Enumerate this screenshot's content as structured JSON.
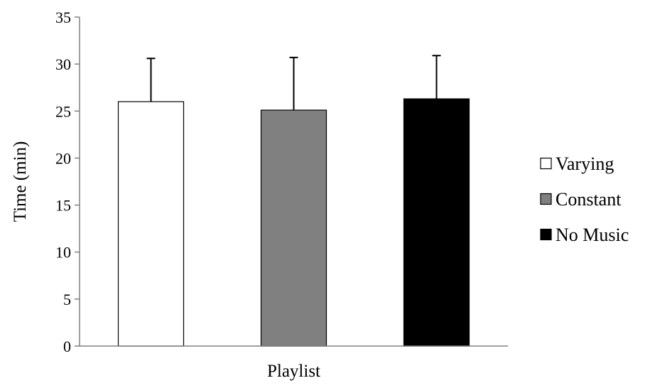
{
  "chart_data": {
    "type": "bar",
    "title": "",
    "xlabel": "Playlist",
    "ylabel": "Time (min)",
    "ylim": [
      0,
      35
    ],
    "yticks": [
      0,
      5,
      10,
      15,
      20,
      25,
      30,
      35
    ],
    "grid": false,
    "legend_position": "right",
    "error_bars": "upper",
    "series": [
      {
        "name": "Varying",
        "value": 26.0,
        "error": 4.6,
        "color": "#ffffff"
      },
      {
        "name": "Constant",
        "value": 25.1,
        "error": 5.6,
        "color": "#808080"
      },
      {
        "name": "No Music",
        "value": 26.3,
        "error": 4.6,
        "color": "#000000"
      }
    ]
  }
}
